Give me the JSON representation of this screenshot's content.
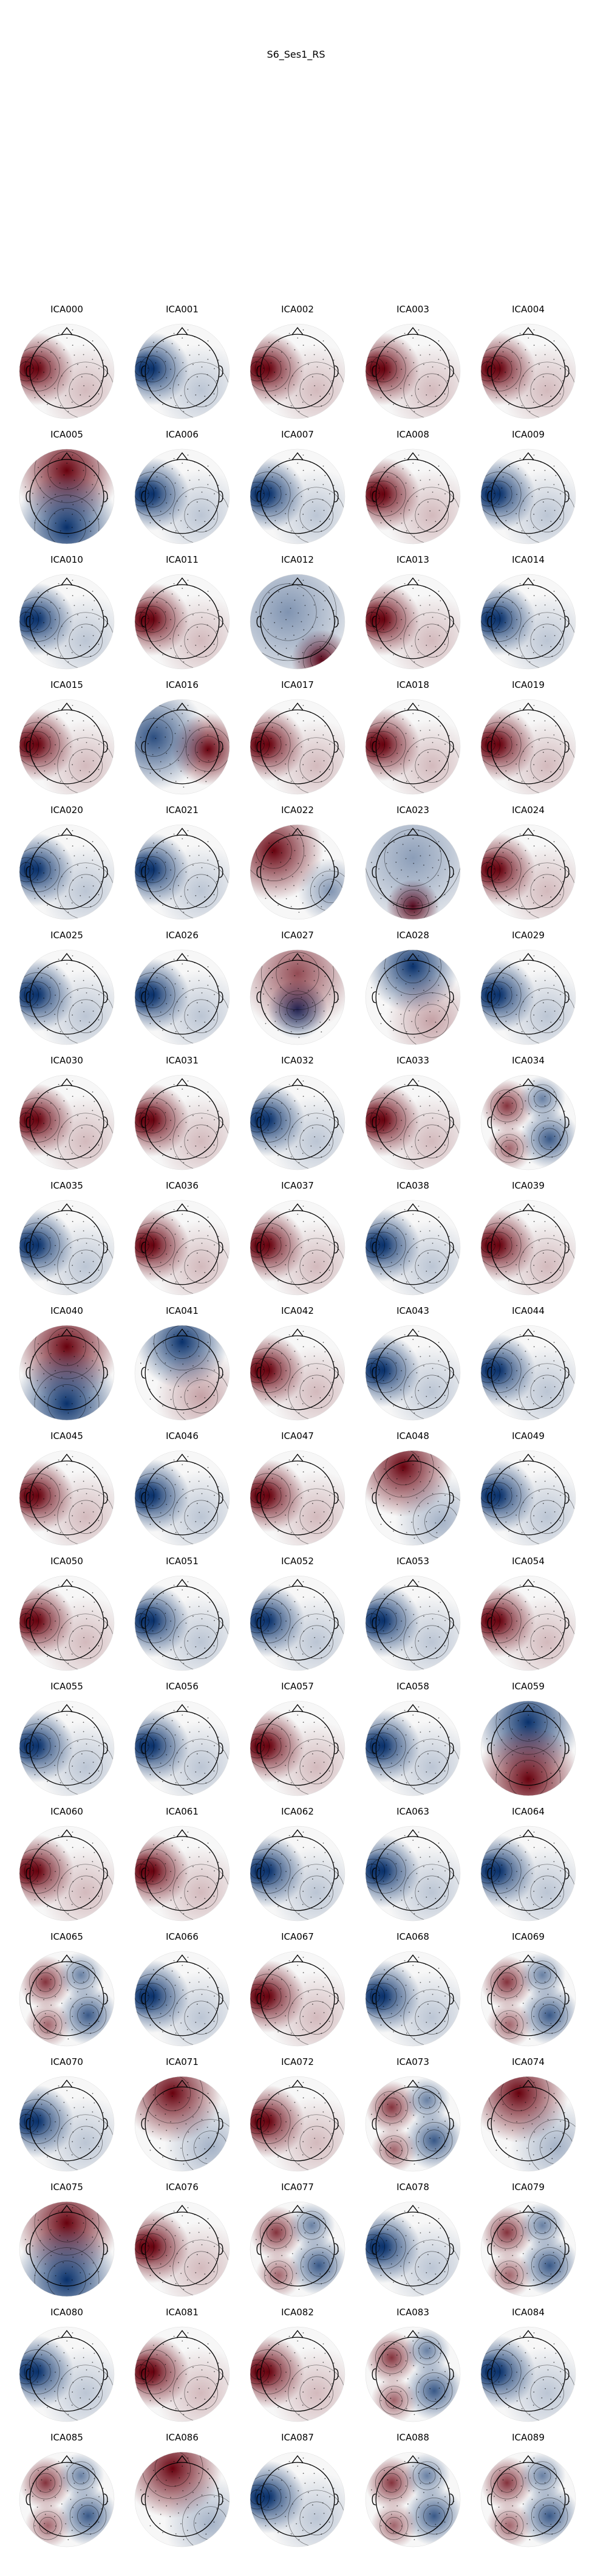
{
  "figure": {
    "title": "S6_Ses1_RS"
  },
  "colormap": {
    "negative": "#08306b",
    "mid": "#f7f7f7",
    "positive": "#67000d"
  },
  "components": [
    {
      "label": "ICA000",
      "pattern": "left-red"
    },
    {
      "label": "ICA001",
      "pattern": "left-blue"
    },
    {
      "label": "ICA002",
      "pattern": "left-red"
    },
    {
      "label": "ICA003",
      "pattern": "left-red"
    },
    {
      "label": "ICA004",
      "pattern": "left-red"
    },
    {
      "label": "ICA005",
      "pattern": "top-red-bottom-blue"
    },
    {
      "label": "ICA006",
      "pattern": "left-blue"
    },
    {
      "label": "ICA007",
      "pattern": "left-blue"
    },
    {
      "label": "ICA008",
      "pattern": "left-red"
    },
    {
      "label": "ICA009",
      "pattern": "left-blue"
    },
    {
      "label": "ICA010",
      "pattern": "left-blue"
    },
    {
      "label": "ICA011",
      "pattern": "left-red"
    },
    {
      "label": "ICA012",
      "pattern": "blue-with-red-bottom-right"
    },
    {
      "label": "ICA013",
      "pattern": "left-red"
    },
    {
      "label": "ICA014",
      "pattern": "left-blue"
    },
    {
      "label": "ICA015",
      "pattern": "left-red"
    },
    {
      "label": "ICA016",
      "pattern": "blue-with-red-right"
    },
    {
      "label": "ICA017",
      "pattern": "left-red"
    },
    {
      "label": "ICA018",
      "pattern": "left-red"
    },
    {
      "label": "ICA019",
      "pattern": "left-red"
    },
    {
      "label": "ICA020",
      "pattern": "left-blue"
    },
    {
      "label": "ICA021",
      "pattern": "left-blue"
    },
    {
      "label": "ICA022",
      "pattern": "top-left-red"
    },
    {
      "label": "ICA023",
      "pattern": "blue-with-red-bottom"
    },
    {
      "label": "ICA024",
      "pattern": "left-red"
    },
    {
      "label": "ICA025",
      "pattern": "left-blue"
    },
    {
      "label": "ICA026",
      "pattern": "left-blue"
    },
    {
      "label": "ICA027",
      "pattern": "red-with-blue-center"
    },
    {
      "label": "ICA028",
      "pattern": "top-blue"
    },
    {
      "label": "ICA029",
      "pattern": "left-blue"
    },
    {
      "label": "ICA030",
      "pattern": "left-red"
    },
    {
      "label": "ICA031",
      "pattern": "left-red"
    },
    {
      "label": "ICA032",
      "pattern": "left-blue"
    },
    {
      "label": "ICA033",
      "pattern": "left-red"
    },
    {
      "label": "ICA034",
      "pattern": "mixed"
    },
    {
      "label": "ICA035",
      "pattern": "left-blue"
    },
    {
      "label": "ICA036",
      "pattern": "left-red"
    },
    {
      "label": "ICA037",
      "pattern": "left-red"
    },
    {
      "label": "ICA038",
      "pattern": "left-blue"
    },
    {
      "label": "ICA039",
      "pattern": "left-red"
    },
    {
      "label": "ICA040",
      "pattern": "top-red-bottom-blue"
    },
    {
      "label": "ICA041",
      "pattern": "top-blue"
    },
    {
      "label": "ICA042",
      "pattern": "left-red"
    },
    {
      "label": "ICA043",
      "pattern": "left-blue"
    },
    {
      "label": "ICA044",
      "pattern": "left-blue"
    },
    {
      "label": "ICA045",
      "pattern": "left-red"
    },
    {
      "label": "ICA046",
      "pattern": "left-blue"
    },
    {
      "label": "ICA047",
      "pattern": "left-red"
    },
    {
      "label": "ICA048",
      "pattern": "top-red"
    },
    {
      "label": "ICA049",
      "pattern": "left-blue"
    },
    {
      "label": "ICA050",
      "pattern": "left-red"
    },
    {
      "label": "ICA051",
      "pattern": "left-blue"
    },
    {
      "label": "ICA052",
      "pattern": "left-blue"
    },
    {
      "label": "ICA053",
      "pattern": "left-blue"
    },
    {
      "label": "ICA054",
      "pattern": "left-red"
    },
    {
      "label": "ICA055",
      "pattern": "left-blue"
    },
    {
      "label": "ICA056",
      "pattern": "left-blue"
    },
    {
      "label": "ICA057",
      "pattern": "left-red"
    },
    {
      "label": "ICA058",
      "pattern": "left-blue"
    },
    {
      "label": "ICA059",
      "pattern": "top-blue-bottom-red"
    },
    {
      "label": "ICA060",
      "pattern": "left-red"
    },
    {
      "label": "ICA061",
      "pattern": "left-red"
    },
    {
      "label": "ICA062",
      "pattern": "left-blue"
    },
    {
      "label": "ICA063",
      "pattern": "left-blue"
    },
    {
      "label": "ICA064",
      "pattern": "left-blue"
    },
    {
      "label": "ICA065",
      "pattern": "mixed"
    },
    {
      "label": "ICA066",
      "pattern": "left-blue"
    },
    {
      "label": "ICA067",
      "pattern": "left-red"
    },
    {
      "label": "ICA068",
      "pattern": "left-blue"
    },
    {
      "label": "ICA069",
      "pattern": "mixed"
    },
    {
      "label": "ICA070",
      "pattern": "left-blue"
    },
    {
      "label": "ICA071",
      "pattern": "top-red"
    },
    {
      "label": "ICA072",
      "pattern": "left-red"
    },
    {
      "label": "ICA073",
      "pattern": "mixed"
    },
    {
      "label": "ICA074",
      "pattern": "top-red"
    },
    {
      "label": "ICA075",
      "pattern": "top-red-bottom-blue"
    },
    {
      "label": "ICA076",
      "pattern": "left-red"
    },
    {
      "label": "ICA077",
      "pattern": "mixed"
    },
    {
      "label": "ICA078",
      "pattern": "left-blue"
    },
    {
      "label": "ICA079",
      "pattern": "mixed"
    },
    {
      "label": "ICA080",
      "pattern": "left-blue"
    },
    {
      "label": "ICA081",
      "pattern": "left-red"
    },
    {
      "label": "ICA082",
      "pattern": "left-red"
    },
    {
      "label": "ICA083",
      "pattern": "mixed"
    },
    {
      "label": "ICA084",
      "pattern": "left-blue"
    },
    {
      "label": "ICA085",
      "pattern": "mixed"
    },
    {
      "label": "ICA086",
      "pattern": "top-red"
    },
    {
      "label": "ICA087",
      "pattern": "left-blue"
    },
    {
      "label": "ICA088",
      "pattern": "mixed"
    },
    {
      "label": "ICA089",
      "pattern": "mixed"
    }
  ]
}
